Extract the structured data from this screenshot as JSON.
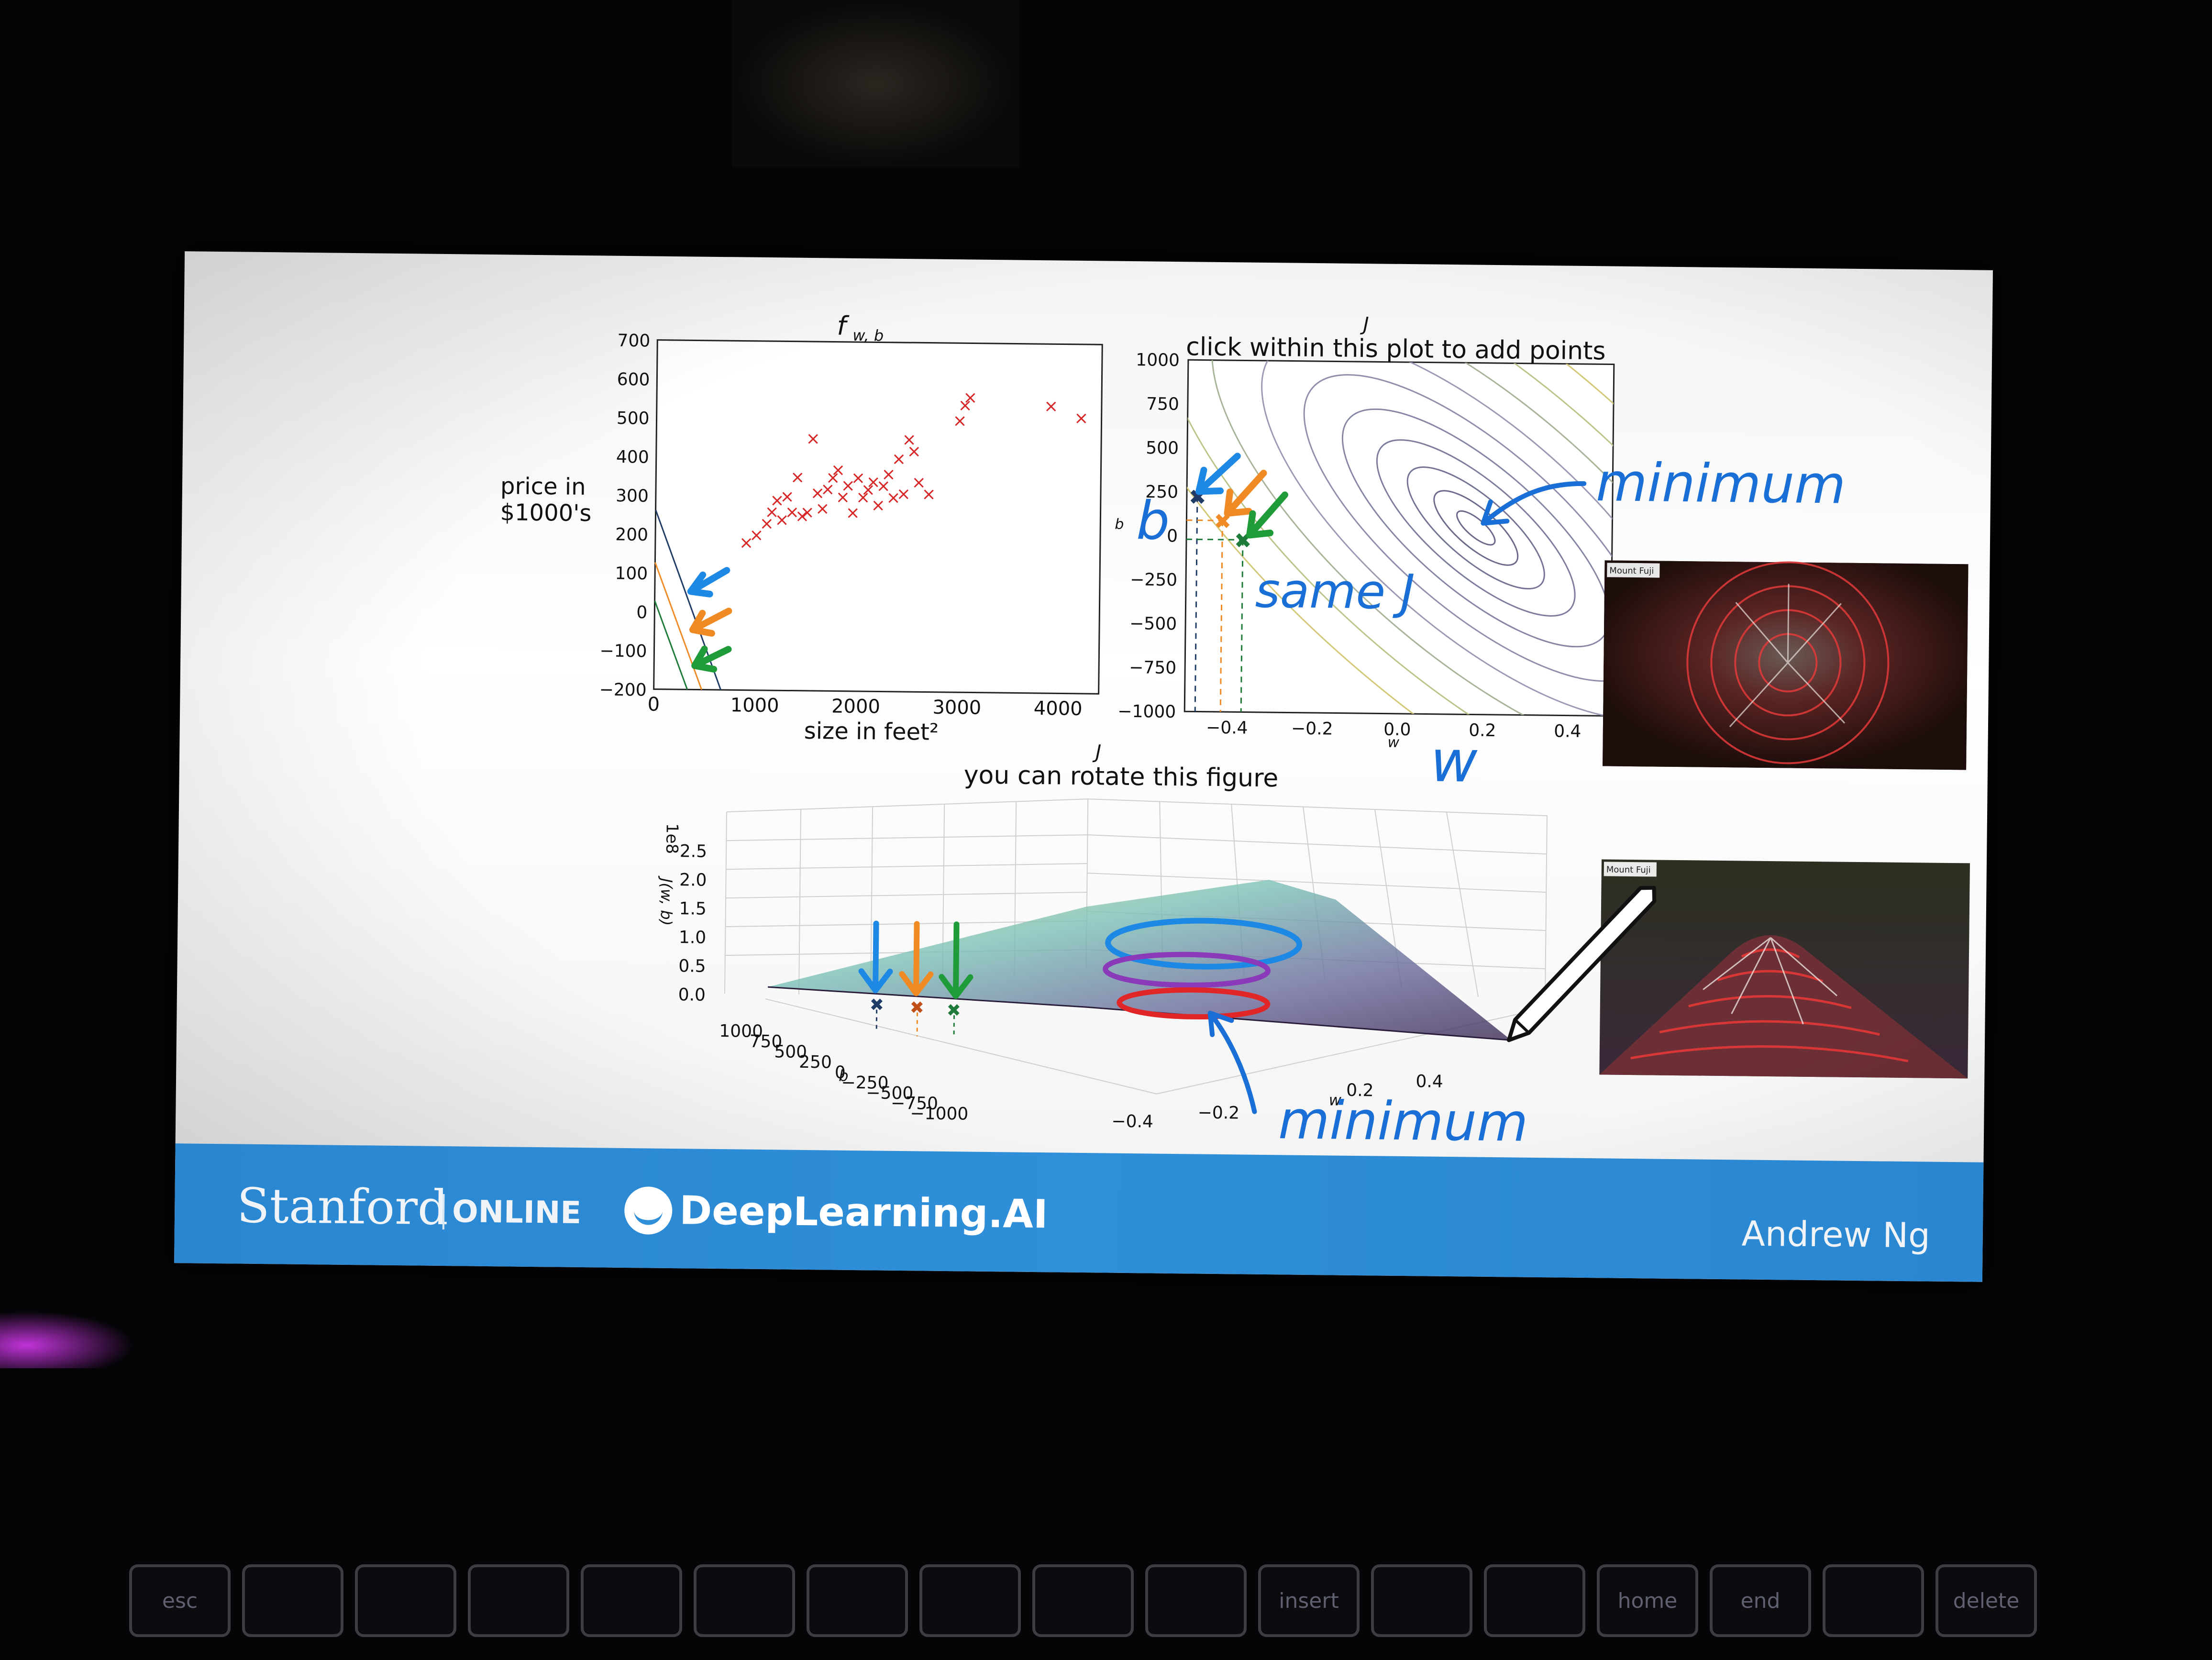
{
  "slide": {
    "plot_left": {
      "title": "f",
      "title_sub": "w, b",
      "ylabel_line1": "price in",
      "ylabel_line2": "$1000's",
      "xlabel": "size in feet²",
      "yticks": [
        "700",
        "600",
        "500",
        "400",
        "300",
        "200",
        "100",
        "0",
        "−100",
        "−200"
      ],
      "xticks": [
        "0",
        "1000",
        "2000",
        "3000",
        "4000"
      ]
    },
    "plot_contour": {
      "title_j": "J",
      "title": "click within this plot to add points",
      "ylabel": "b",
      "xlabel": "w",
      "yticks": [
        "1000",
        "750",
        "500",
        "250",
        "0",
        "−250",
        "−500",
        "−750",
        "−1000"
      ],
      "xticks": [
        "−0.4",
        "−0.2",
        "0.0",
        "0.2",
        "0.4"
      ]
    },
    "plot_3d": {
      "title_j": "J",
      "title": "you can rotate this figure",
      "zlabel": "J(w, b)",
      "zscale": "1e8",
      "zticks": [
        "2.5",
        "2.0",
        "1.5",
        "1.0",
        "0.5",
        "0.0"
      ],
      "blabel": "b",
      "bticks": [
        "1000",
        "750",
        "500",
        "250",
        "0",
        "−250",
        "−500",
        "−750",
        "−1000"
      ],
      "wlabel": "w",
      "wticks": [
        "−0.4",
        "−0.2",
        "0.2",
        "0.4"
      ]
    },
    "annotations": {
      "minimum_top": "minimum",
      "same_j": "same J",
      "b_letter": "b",
      "w_letter": "w",
      "minimum_bottom": "minimum"
    },
    "inset_labels": {
      "top": "Mount Fuji",
      "bottom": "Mount Fuji"
    }
  },
  "footer": {
    "stanford": "Stanford",
    "online": "ONLINE",
    "deeplearning": "DeepLearning.AI",
    "presenter": "Andrew Ng"
  },
  "keyboard": {
    "keys": [
      "esc",
      "",
      "",
      "",
      "",
      "",
      "",
      "",
      "",
      "",
      "insert",
      "",
      "",
      "home",
      "end",
      "",
      "delete"
    ]
  },
  "colors": {
    "annotation_blue": "#1a6fd6",
    "arrow_blue": "#1e88e5",
    "arrow_orange": "#f08a24",
    "arrow_green": "#1f9b3a",
    "data_red": "#d62728",
    "footer_blue": "#2f8fd9"
  },
  "chart_data": [
    {
      "type": "scatter",
      "title": "f w, b",
      "xlabel": "size in feet²",
      "ylabel": "price in $1000's",
      "xlim": [
        0,
        4400
      ],
      "ylim": [
        -200,
        700
      ],
      "series": [
        {
          "x": [
            900,
            1000,
            1100,
            1150,
            1200,
            1250,
            1300,
            1350,
            1400,
            1450,
            1500,
            1550,
            1600,
            1650,
            1700,
            1750,
            1800,
            1850,
            1900,
            1950,
            2000,
            2050,
            2100,
            2150,
            2200,
            2250,
            2300,
            2350,
            2400,
            2450,
            2500,
            2550,
            2600,
            2700,
            3000,
            3100,
            3050,
            3900,
            4200
          ],
          "y": [
            180,
            200,
            230,
            260,
            290,
            240,
            300,
            260,
            350,
            250,
            260,
            450,
            310,
            270,
            320,
            350,
            370,
            300,
            330,
            260,
            350,
            300,
            320,
            340,
            280,
            330,
            360,
            300,
            400,
            310,
            450,
            420,
            340,
            310,
            500,
            560,
            540,
            540,
            510
          ]
        }
      ]
    },
    {
      "type": "line",
      "title": "click within this plot to add points",
      "xlabel": "w",
      "ylabel": "b",
      "xlim": [
        -0.5,
        0.5
      ],
      "ylim": [
        -1000,
        1000
      ]
    }
  ]
}
